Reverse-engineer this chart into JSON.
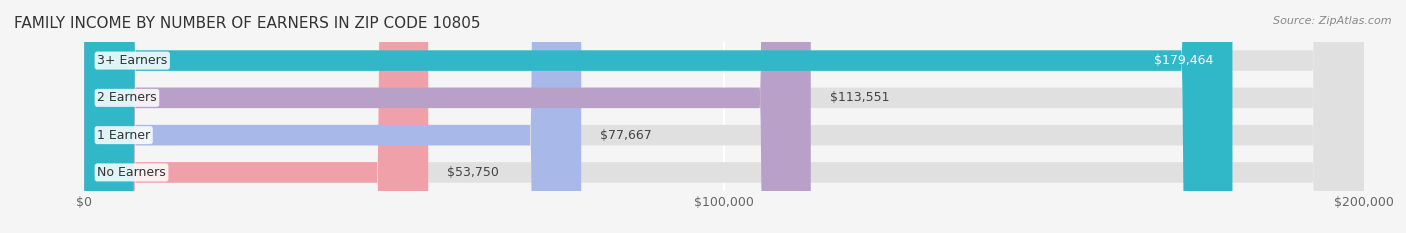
{
  "title": "FAMILY INCOME BY NUMBER OF EARNERS IN ZIP CODE 10805",
  "source": "Source: ZipAtlas.com",
  "categories": [
    "No Earners",
    "1 Earner",
    "2 Earners",
    "3+ Earners"
  ],
  "values": [
    53750,
    77667,
    113551,
    179464
  ],
  "bar_colors": [
    "#f0a0a8",
    "#a8b8e8",
    "#b8a0c8",
    "#30b8c8"
  ],
  "bar_bg_color": "#e8e8e8",
  "label_colors": [
    "#c06870",
    "#6878b0",
    "#806090",
    "#208898"
  ],
  "value_labels": [
    "$53,750",
    "$77,667",
    "$113,551",
    "$179,464"
  ],
  "xlim": [
    0,
    200000
  ],
  "xticks": [
    0,
    100000,
    200000
  ],
  "xtick_labels": [
    "$0",
    "$100,000",
    "$200,000"
  ],
  "background_color": "#f5f5f5",
  "bar_bg_alpha": 0.5,
  "title_fontsize": 11,
  "source_fontsize": 8,
  "label_fontsize": 9,
  "value_fontsize": 9,
  "tick_fontsize": 9
}
